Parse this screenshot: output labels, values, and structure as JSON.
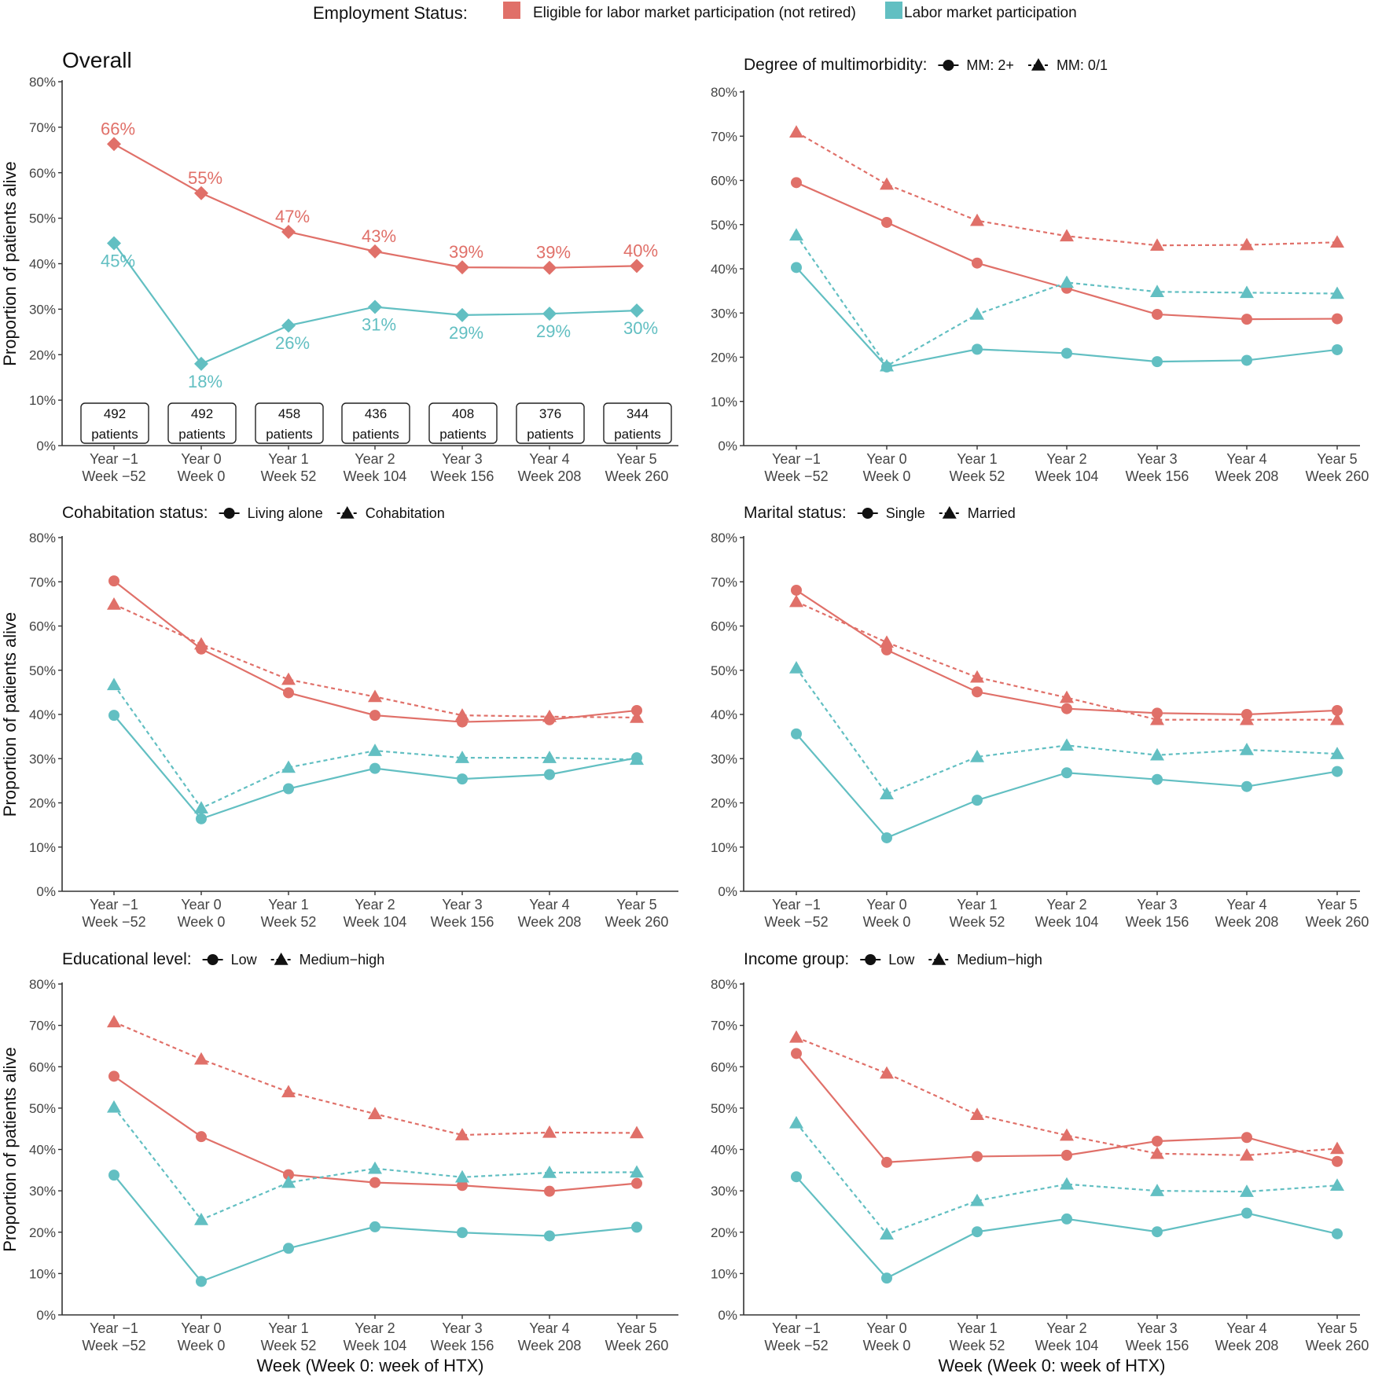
{
  "legend": {
    "title": "Employment Status:",
    "items": [
      {
        "label": "Eligible for labor market participation (not retired)",
        "color": "#E07069"
      },
      {
        "label": "Labor market participation",
        "color": "#62BFC2"
      }
    ]
  },
  "shared_ylabel": "Proportion of patients alive",
  "shared_xlabel": "Week (Week 0: week of HTX)",
  "colors": {
    "eligible": "#E07069",
    "labor": "#62BFC2",
    "axis": "#333333",
    "text": "#111111"
  },
  "chart_data": [
    {
      "id": "overall",
      "type": "line",
      "title": "Overall",
      "categories": [
        "Year −1|Week −52",
        "Year 0|Week 0",
        "Year 1|Week 52",
        "Year 2|Week 104",
        "Year 3|Week 156",
        "Year 4|Week 208",
        "Year 5|Week 260"
      ],
      "ylim": [
        0,
        80
      ],
      "yticks": [
        "0%",
        "10%",
        "20%",
        "30%",
        "40%",
        "50%",
        "60%",
        "70%",
        "80%"
      ],
      "ylabel": "Proportion of patients alive",
      "xlabel": "",
      "series": [
        {
          "name": "Eligible for labor market participation (not retired)",
          "marker": "diamond",
          "dashed": false,
          "color": "#E07069",
          "values": [
            66.3,
            55.5,
            47.0,
            42.7,
            39.2,
            39.1,
            39.5
          ],
          "labels": [
            "66%",
            "55%",
            "47%",
            "43%",
            "39%",
            "39%",
            "40%"
          ]
        },
        {
          "name": "Labor market participation",
          "marker": "diamond",
          "dashed": false,
          "color": "#62BFC2",
          "values": [
            44.5,
            18.0,
            26.4,
            30.5,
            28.7,
            29.0,
            29.7
          ],
          "labels": [
            "45%",
            "18%",
            "26%",
            "31%",
            "29%",
            "29%",
            "30%"
          ]
        }
      ],
      "patient_counts": [
        {
          "n": "492",
          "unit": "patients"
        },
        {
          "n": "492",
          "unit": "patients"
        },
        {
          "n": "458",
          "unit": "patients"
        },
        {
          "n": "436",
          "unit": "patients"
        },
        {
          "n": "408",
          "unit": "patients"
        },
        {
          "n": "376",
          "unit": "patients"
        },
        {
          "n": "344",
          "unit": "patients"
        }
      ]
    },
    {
      "id": "multimorbidity",
      "type": "line",
      "title": "Degree of multimorbidity:",
      "legend": [
        {
          "label": "MM: 2+",
          "marker": "circle"
        },
        {
          "label": "MM: 0/1",
          "marker": "triangle"
        }
      ],
      "categories": [
        "Year −1|Week −52",
        "Year 0|Week 0",
        "Year 1|Week 52",
        "Year 2|Week 104",
        "Year 3|Week 156",
        "Year 4|Week 208",
        "Year 5|Week 260"
      ],
      "ylim": [
        0,
        80
      ],
      "yticks": [
        "0%",
        "10%",
        "20%",
        "30%",
        "40%",
        "50%",
        "60%",
        "70%",
        "80%"
      ],
      "ylabel": "",
      "xlabel": "",
      "series": [
        {
          "name": "MM: 2+",
          "employment": "eligible",
          "marker": "circle",
          "dashed": false,
          "color": "#E07069",
          "values": [
            59.5,
            50.5,
            41.3,
            35.6,
            29.7,
            28.6,
            28.7
          ]
        },
        {
          "name": "MM: 0/1",
          "employment": "eligible",
          "marker": "triangle",
          "dashed": true,
          "color": "#E07069",
          "values": [
            70.9,
            59.1,
            50.9,
            47.4,
            45.3,
            45.4,
            46.0
          ]
        },
        {
          "name": "MM: 2+",
          "employment": "labor",
          "marker": "circle",
          "dashed": false,
          "color": "#62BFC2",
          "values": [
            40.3,
            17.8,
            21.8,
            20.9,
            19.0,
            19.3,
            21.7
          ]
        },
        {
          "name": "MM: 0/1",
          "employment": "labor",
          "marker": "triangle",
          "dashed": true,
          "color": "#62BFC2",
          "values": [
            47.6,
            18.0,
            29.7,
            36.9,
            34.8,
            34.6,
            34.4
          ]
        }
      ]
    },
    {
      "id": "cohabitation",
      "type": "line",
      "title": "Cohabitation status:",
      "legend": [
        {
          "label": "Living alone",
          "marker": "circle"
        },
        {
          "label": "Cohabitation",
          "marker": "triangle"
        }
      ],
      "categories": [
        "Year −1|Week −52",
        "Year 0|Week 0",
        "Year 1|Week 52",
        "Year 2|Week 104",
        "Year 3|Week 156",
        "Year 4|Week 208",
        "Year 5|Week 260"
      ],
      "ylim": [
        0,
        80
      ],
      "yticks": [
        "0%",
        "10%",
        "20%",
        "30%",
        "40%",
        "50%",
        "60%",
        "70%",
        "80%"
      ],
      "ylabel": "Proportion of patients alive",
      "xlabel": "",
      "series": [
        {
          "name": "Living alone",
          "employment": "eligible",
          "marker": "circle",
          "dashed": false,
          "color": "#E07069",
          "values": [
            70.2,
            54.8,
            44.9,
            39.8,
            38.3,
            38.8,
            40.9
          ]
        },
        {
          "name": "Cohabitation",
          "employment": "eligible",
          "marker": "triangle",
          "dashed": true,
          "color": "#E07069",
          "values": [
            64.9,
            55.9,
            47.9,
            44.0,
            39.8,
            39.5,
            39.3
          ]
        },
        {
          "name": "Living alone",
          "employment": "labor",
          "marker": "circle",
          "dashed": false,
          "color": "#62BFC2",
          "values": [
            39.8,
            16.4,
            23.2,
            27.8,
            25.4,
            26.4,
            30.2
          ]
        },
        {
          "name": "Cohabitation",
          "employment": "labor",
          "marker": "triangle",
          "dashed": true,
          "color": "#62BFC2",
          "values": [
            46.7,
            18.8,
            28.0,
            31.8,
            30.2,
            30.2,
            29.8
          ]
        }
      ]
    },
    {
      "id": "marital",
      "type": "line",
      "title": "Marital status:",
      "legend": [
        {
          "label": "Single",
          "marker": "circle"
        },
        {
          "label": "Married",
          "marker": "triangle"
        }
      ],
      "categories": [
        "Year −1|Week −52",
        "Year 0|Week 0",
        "Year 1|Week 52",
        "Year 2|Week 104",
        "Year 3|Week 156",
        "Year 4|Week 208",
        "Year 5|Week 260"
      ],
      "ylim": [
        0,
        80
      ],
      "yticks": [
        "0%",
        "10%",
        "20%",
        "30%",
        "40%",
        "50%",
        "60%",
        "70%",
        "80%"
      ],
      "ylabel": "",
      "xlabel": "",
      "series": [
        {
          "name": "Single",
          "employment": "eligible",
          "marker": "circle",
          "dashed": false,
          "color": "#E07069",
          "values": [
            68.1,
            54.6,
            45.1,
            41.3,
            40.3,
            40.0,
            40.9
          ]
        },
        {
          "name": "Married",
          "employment": "eligible",
          "marker": "triangle",
          "dashed": true,
          "color": "#E07069",
          "values": [
            65.5,
            56.3,
            48.4,
            43.8,
            38.8,
            38.8,
            38.8
          ]
        },
        {
          "name": "Single",
          "employment": "labor",
          "marker": "circle",
          "dashed": false,
          "color": "#62BFC2",
          "values": [
            35.6,
            12.1,
            20.6,
            26.8,
            25.3,
            23.7,
            27.1
          ]
        },
        {
          "name": "Married",
          "employment": "labor",
          "marker": "triangle",
          "dashed": true,
          "color": "#62BFC2",
          "values": [
            50.5,
            22.0,
            30.4,
            33.0,
            30.8,
            32.0,
            31.1
          ]
        }
      ]
    },
    {
      "id": "education",
      "type": "line",
      "title": "Educational level:",
      "legend": [
        {
          "label": "Low",
          "marker": "circle"
        },
        {
          "label": "Medium−high",
          "marker": "triangle"
        }
      ],
      "categories": [
        "Year −1|Week −52",
        "Year 0|Week 0",
        "Year 1|Week 52",
        "Year 2|Week 104",
        "Year 3|Week 156",
        "Year 4|Week 208",
        "Year 5|Week 260"
      ],
      "ylim": [
        0,
        80
      ],
      "yticks": [
        "0%",
        "10%",
        "20%",
        "30%",
        "40%",
        "50%",
        "60%",
        "70%",
        "80%"
      ],
      "ylabel": "Proportion of patients alive",
      "xlabel": "Week (Week 0: week of HTX)",
      "series": [
        {
          "name": "Low",
          "employment": "eligible",
          "marker": "circle",
          "dashed": false,
          "color": "#E07069",
          "values": [
            57.7,
            43.1,
            33.9,
            32.0,
            31.3,
            29.9,
            31.8
          ]
        },
        {
          "name": "Medium−high",
          "employment": "eligible",
          "marker": "triangle",
          "dashed": true,
          "color": "#E07069",
          "values": [
            70.8,
            61.8,
            53.9,
            48.6,
            43.5,
            44.1,
            44.0
          ]
        },
        {
          "name": "Low",
          "employment": "labor",
          "marker": "circle",
          "dashed": false,
          "color": "#62BFC2",
          "values": [
            33.8,
            8.1,
            16.1,
            21.3,
            19.9,
            19.1,
            21.2
          ]
        },
        {
          "name": "Medium−high",
          "employment": "labor",
          "marker": "triangle",
          "dashed": true,
          "color": "#62BFC2",
          "values": [
            50.2,
            23.0,
            32.0,
            35.4,
            33.3,
            34.4,
            34.5
          ]
        }
      ]
    },
    {
      "id": "income",
      "type": "line",
      "title": "Income group:",
      "legend": [
        {
          "label": "Low",
          "marker": "circle"
        },
        {
          "label": "Medium−high",
          "marker": "triangle"
        }
      ],
      "categories": [
        "Year −1|Week −52",
        "Year 0|Week 0",
        "Year 1|Week 52",
        "Year 2|Week 104",
        "Year 3|Week 156",
        "Year 4|Week 208",
        "Year 5|Week 260"
      ],
      "ylim": [
        0,
        80
      ],
      "yticks": [
        "0%",
        "10%",
        "20%",
        "30%",
        "40%",
        "50%",
        "60%",
        "70%",
        "80%"
      ],
      "ylabel": "",
      "xlabel": "Week (Week 0: week of HTX)",
      "series": [
        {
          "name": "Low",
          "employment": "eligible",
          "marker": "circle",
          "dashed": false,
          "color": "#E07069",
          "values": [
            63.2,
            36.9,
            38.3,
            38.6,
            42.0,
            42.9,
            37.1
          ]
        },
        {
          "name": "Medium−high",
          "employment": "eligible",
          "marker": "triangle",
          "dashed": true,
          "color": "#E07069",
          "values": [
            67.1,
            58.4,
            48.4,
            43.4,
            39.0,
            38.6,
            40.2
          ]
        },
        {
          "name": "Low",
          "employment": "labor",
          "marker": "circle",
          "dashed": false,
          "color": "#62BFC2",
          "values": [
            33.4,
            8.9,
            20.1,
            23.2,
            20.1,
            24.6,
            19.6
          ]
        },
        {
          "name": "Medium−high",
          "employment": "labor",
          "marker": "triangle",
          "dashed": true,
          "color": "#62BFC2",
          "values": [
            46.4,
            19.5,
            27.6,
            31.6,
            30.0,
            29.8,
            31.3
          ]
        }
      ]
    }
  ]
}
